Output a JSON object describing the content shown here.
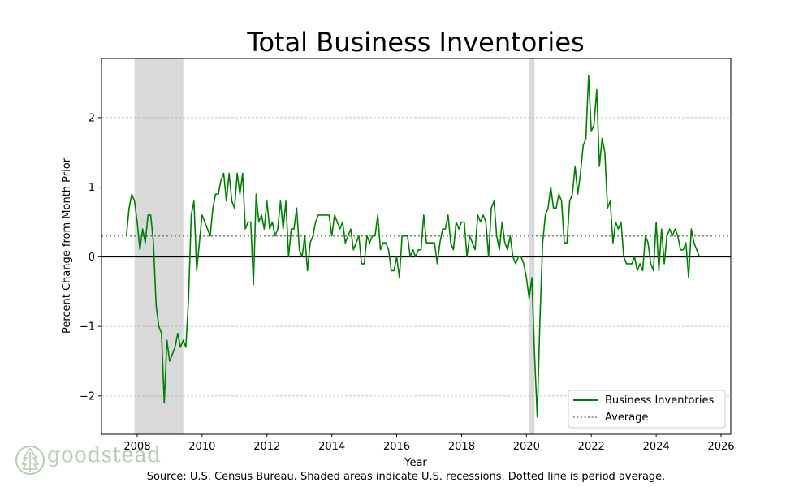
{
  "chart_data": {
    "type": "line",
    "title": "Total Business Inventories",
    "xlabel": "Year",
    "ylabel": "Percent Change from Month Prior",
    "xlim": [
      2006.9,
      2026.3
    ],
    "ylim": [
      -2.55,
      2.85
    ],
    "xticks": [
      2008,
      2010,
      2012,
      2014,
      2016,
      2018,
      2020,
      2022,
      2024,
      2026
    ],
    "yticks": [
      -2,
      -1,
      0,
      1,
      2
    ],
    "ytick_labels": [
      "−2",
      "−1",
      "0",
      "1",
      "2"
    ],
    "grid": "horizontal dashed",
    "legend_position": "lower-right",
    "recessions": [
      {
        "start": 2007.92,
        "end": 2009.42
      },
      {
        "start": 2020.08,
        "end": 2020.25
      }
    ],
    "average": 0.3,
    "series": [
      {
        "name": "Business Inventories",
        "color": "#008000",
        "x_start": 2007.667,
        "x_step": 0.08333,
        "values": [
          0.3,
          0.7,
          0.9,
          0.8,
          0.5,
          0.1,
          0.4,
          0.2,
          0.6,
          0.6,
          0.2,
          -0.7,
          -1.0,
          -1.1,
          -2.1,
          -1.2,
          -1.5,
          -1.4,
          -1.3,
          -1.1,
          -1.3,
          -1.2,
          -1.3,
          -0.6,
          0.6,
          0.8,
          -0.2,
          0.2,
          0.6,
          0.5,
          0.4,
          0.3,
          0.7,
          0.9,
          0.9,
          1.1,
          1.2,
          0.8,
          1.2,
          0.8,
          0.7,
          1.2,
          0.9,
          1.2,
          0.4,
          0.5,
          0.5,
          -0.4,
          0.9,
          0.5,
          0.6,
          0.4,
          0.8,
          0.4,
          0.5,
          0.3,
          0.4,
          0.8,
          0.4,
          0.8,
          0.0,
          0.4,
          0.4,
          0.7,
          0.1,
          0.0,
          0.3,
          -0.2,
          0.2,
          0.3,
          0.5,
          0.6,
          0.6,
          0.6,
          0.6,
          0.6,
          0.3,
          0.6,
          0.5,
          0.4,
          0.5,
          0.2,
          0.3,
          0.4,
          0.1,
          0.2,
          0.3,
          -0.1,
          -0.1,
          0.3,
          0.2,
          0.3,
          0.3,
          0.6,
          0.1,
          0.2,
          0.2,
          0.1,
          -0.2,
          -0.2,
          0.0,
          -0.3,
          0.3,
          0.3,
          0.3,
          0.0,
          0.1,
          0.0,
          0.1,
          0.1,
          0.6,
          0.2,
          0.2,
          0.2,
          0.2,
          -0.1,
          0.2,
          0.4,
          0.4,
          0.6,
          0.2,
          0.1,
          0.5,
          0.4,
          0.5,
          0.5,
          0.0,
          0.3,
          0.2,
          0.1,
          0.6,
          0.5,
          0.6,
          0.5,
          0.0,
          0.7,
          0.8,
          0.3,
          0.1,
          0.5,
          0.2,
          0.1,
          0.3,
          0.0,
          -0.1,
          0.0,
          0.0,
          -0.1,
          -0.3,
          -0.6,
          -0.3,
          -1.4,
          -2.3,
          -0.9,
          0.2,
          0.6,
          0.7,
          1.0,
          0.7,
          0.7,
          0.9,
          0.8,
          0.2,
          0.2,
          0.8,
          0.9,
          1.3,
          0.9,
          1.2,
          1.6,
          1.7,
          2.6,
          1.8,
          1.9,
          2.4,
          1.3,
          1.7,
          1.5,
          0.7,
          0.8,
          0.2,
          0.5,
          0.4,
          0.5,
          0.0,
          -0.1,
          -0.1,
          -0.1,
          0.0,
          -0.2,
          -0.1,
          -0.2,
          0.3,
          0.2,
          -0.1,
          -0.2,
          0.5,
          -0.2,
          0.4,
          -0.1,
          0.3,
          0.4,
          0.3,
          0.4,
          0.3,
          0.1,
          0.1,
          0.2,
          -0.3,
          0.4,
          0.2,
          0.1,
          0.0
        ]
      },
      {
        "name": "Average",
        "color": "#808080",
        "style": "dotted"
      }
    ]
  },
  "watermark": {
    "text": "goodstead",
    "icon": "tree-icon",
    "color": "#b9ccb1"
  },
  "source_note": "Source: U.S. Census Bureau. Shaded areas indicate U.S. recessions. Dotted line is period average."
}
